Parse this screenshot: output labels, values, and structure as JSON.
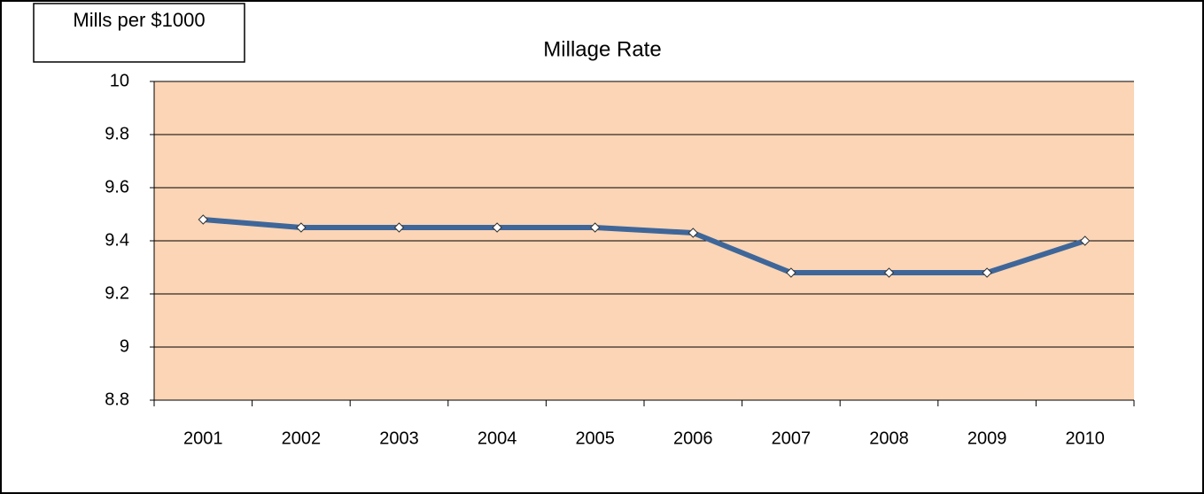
{
  "chart_data": {
    "type": "line",
    "title": "Millage Rate",
    "ylabel": "Mills per $1000",
    "categories": [
      "2001",
      "2002",
      "2003",
      "2004",
      "2005",
      "2006",
      "2007",
      "2008",
      "2009",
      "2010"
    ],
    "series": [
      {
        "name": "Millage Rate",
        "color": "#3f6699",
        "values": [
          9.48,
          9.45,
          9.45,
          9.45,
          9.45,
          9.43,
          9.28,
          9.28,
          9.28,
          9.4
        ]
      }
    ],
    "ylim": [
      8.8,
      10
    ],
    "yticks": [
      8.8,
      9,
      9.2,
      9.4,
      9.6,
      9.8,
      10
    ],
    "grid": true,
    "plot_background": "#fbd5b5"
  }
}
